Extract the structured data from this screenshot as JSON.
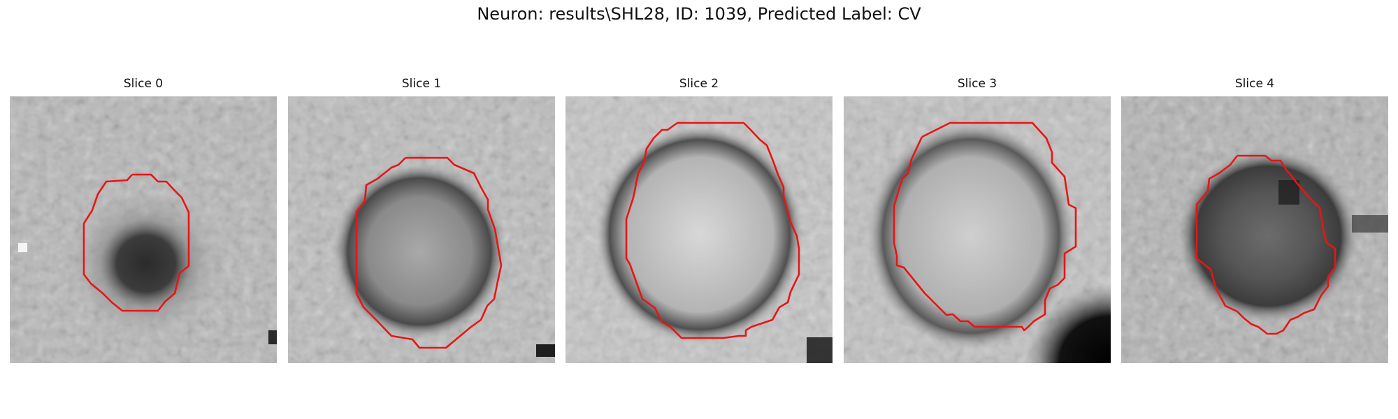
{
  "figure": {
    "title": "Neuron: results\\SHL28, ID: 1039, Predicted Label: CV"
  },
  "panels": [
    {
      "title": "Slice 0"
    },
    {
      "title": "Slice 1"
    },
    {
      "title": "Slice 2"
    },
    {
      "title": "Slice 3"
    },
    {
      "title": "Slice 4"
    }
  ],
  "colors": {
    "contour": "#e81515",
    "background": "#ffffff"
  }
}
